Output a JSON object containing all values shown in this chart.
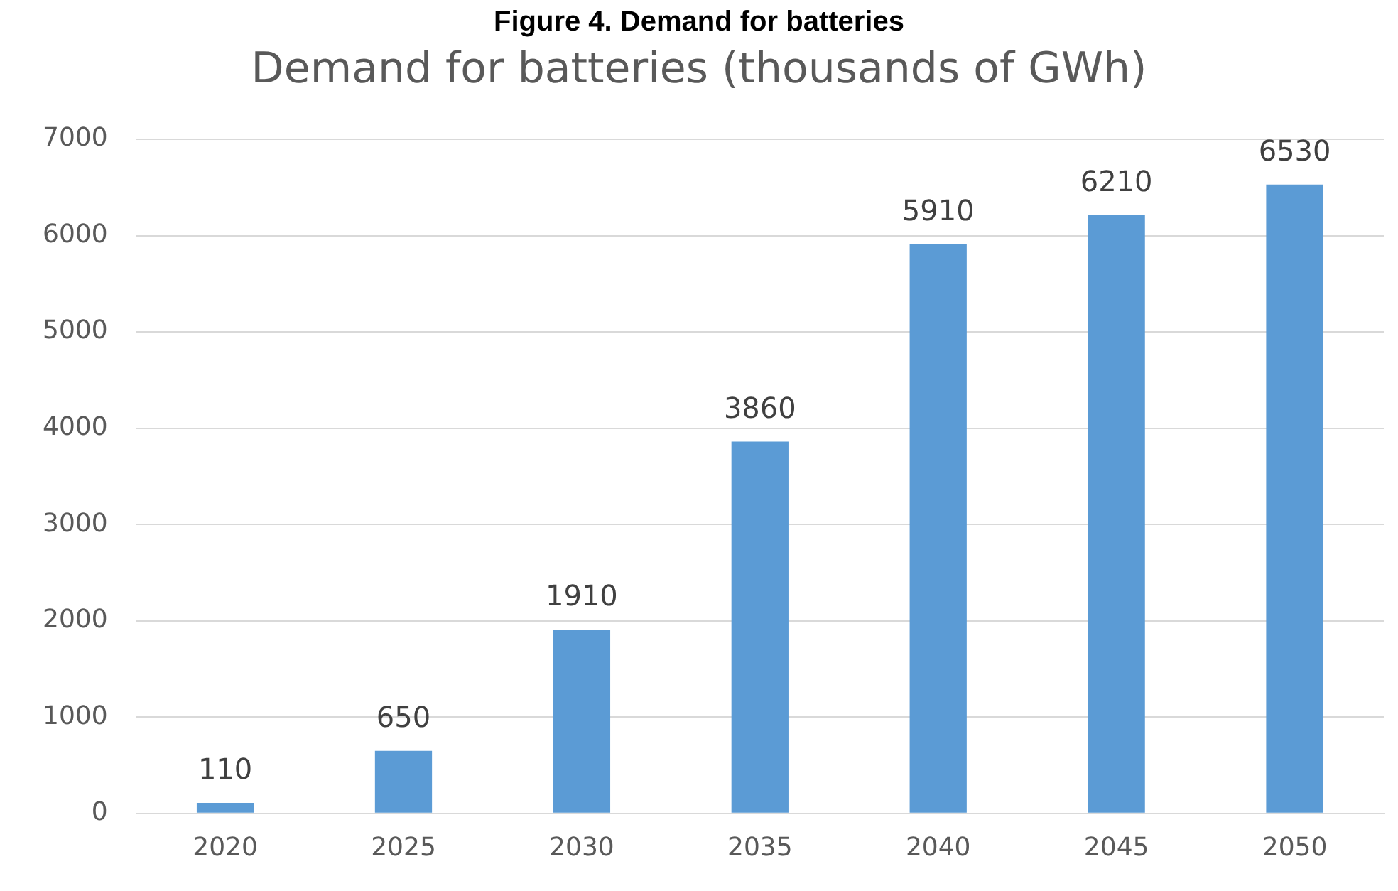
{
  "chart_data": {
    "type": "bar",
    "title": "Figure 4. Demand for batteries",
    "subtitle": "Demand for batteries (thousands of GWh)",
    "categories": [
      "2020",
      "2025",
      "2030",
      "2035",
      "2040",
      "2045",
      "2050"
    ],
    "values": [
      110,
      650,
      1910,
      3860,
      5910,
      6210,
      6530
    ],
    "color": "#5b9bd5",
    "ylim": [
      0,
      7000
    ],
    "yticks": [
      0,
      1000,
      2000,
      3000,
      4000,
      5000,
      6000,
      7000
    ],
    "grid": "y",
    "data_labels": true
  }
}
